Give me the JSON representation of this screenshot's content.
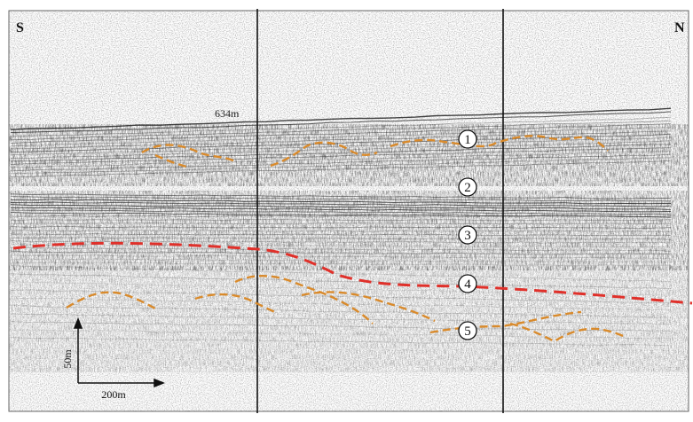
{
  "labels": {
    "south": "S",
    "north": "N",
    "depth_marker": "634m",
    "units": [
      "1",
      "2",
      "3",
      "4",
      "5"
    ],
    "scale_vertical": "50m",
    "scale_horizontal": "200m"
  }
}
